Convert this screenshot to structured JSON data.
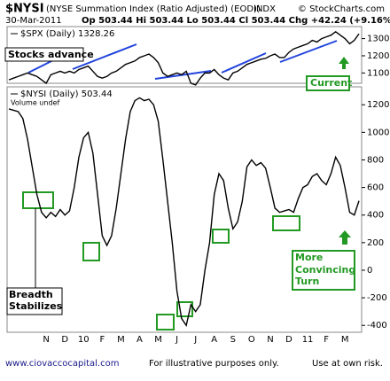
{
  "header": {
    "symbol": "$NYSI",
    "description": "(NYSE Summation Index (Ratio Adjusted) (EOD))",
    "exchange": "INDX",
    "source": "© StockCharts.com",
    "date": "30-Mar-2011",
    "quote": "Op 503.44 Hi 503.44 Lo 503.44 Cl 503.44 Chg +42.24 (+9.16%)"
  },
  "annotations": {
    "stocks_advance": "Stocks advance",
    "current": "Current",
    "breadth": "Breadth Stabilizes",
    "turn": "More Convincing Turn"
  },
  "footer": {
    "site": "www.ciovaccocapital.com",
    "note": "For illustrative purposes only.",
    "risk": "Use at own risk."
  },
  "chart_data": [
    {
      "type": "line",
      "series": [
        {
          "name": "$SPX (Daily) 1328.26",
          "color": "#000000",
          "values": [
            1060,
            1070,
            1080,
            1090,
            1100,
            1090,
            1080,
            1060,
            1040,
            1090,
            1100,
            1110,
            1100,
            1110,
            1100,
            1120,
            1130,
            1140,
            1110,
            1080,
            1070,
            1080,
            1100,
            1110,
            1130,
            1150,
            1160,
            1170,
            1190,
            1200,
            1210,
            1190,
            1160,
            1100,
            1080,
            1090,
            1100,
            1090,
            1110,
            1040,
            1030,
            1070,
            1100,
            1100,
            1120,
            1090,
            1070,
            1060,
            1100,
            1110,
            1130,
            1150,
            1160,
            1170,
            1180,
            1185,
            1200,
            1210,
            1190,
            1190,
            1220,
            1240,
            1250,
            1260,
            1270,
            1290,
            1280,
            1300,
            1310,
            1320,
            1340,
            1320,
            1300,
            1270,
            1290,
            1328.26
          ]
        }
      ],
      "ylim": [
        1040,
        1370
      ],
      "yticks": [
        1100,
        1200,
        1300
      ]
    },
    {
      "type": "line",
      "series": [
        {
          "name": "$NYSI (Daily) 503.44",
          "color": "#000000",
          "values": [
            1170,
            1160,
            1150,
            1100,
            950,
            750,
            550,
            420,
            380,
            420,
            390,
            440,
            400,
            430,
            600,
            820,
            960,
            1000,
            850,
            550,
            250,
            180,
            250,
            450,
            700,
            950,
            1150,
            1230,
            1250,
            1230,
            1240,
            1200,
            1080,
            800,
            500,
            200,
            -150,
            -350,
            -400,
            -250,
            -300,
            -250,
            0,
            200,
            550,
            700,
            650,
            450,
            300,
            350,
            500,
            750,
            800,
            760,
            780,
            740,
            600,
            450,
            420,
            430,
            440,
            420,
            520,
            600,
            620,
            680,
            700,
            650,
            620,
            700,
            820,
            760,
            600,
            420,
            400,
            503.44
          ]
        }
      ],
      "volume_note": "Volume undef",
      "categories": [
        null,
        null,
        null,
        null,
        null,
        null,
        null,
        null,
        "N",
        null,
        null,
        null,
        "D",
        null,
        null,
        null,
        "10",
        null,
        null,
        null,
        "F",
        null,
        null,
        null,
        "M",
        null,
        null,
        null,
        "A",
        null,
        null,
        null,
        "M",
        null,
        null,
        null,
        "J",
        null,
        null,
        null,
        "J",
        null,
        null,
        null,
        "A",
        null,
        null,
        null,
        "S",
        null,
        null,
        null,
        "O",
        null,
        null,
        null,
        "N",
        null,
        null,
        null,
        "D",
        null,
        null,
        null,
        "11",
        null,
        null,
        null,
        "F",
        null,
        null,
        null,
        "M",
        null,
        null,
        null
      ],
      "ylim": [
        -450,
        1330
      ],
      "yticks": [
        -400,
        -200,
        0,
        200,
        400,
        600,
        800,
        1000,
        1200
      ]
    }
  ]
}
